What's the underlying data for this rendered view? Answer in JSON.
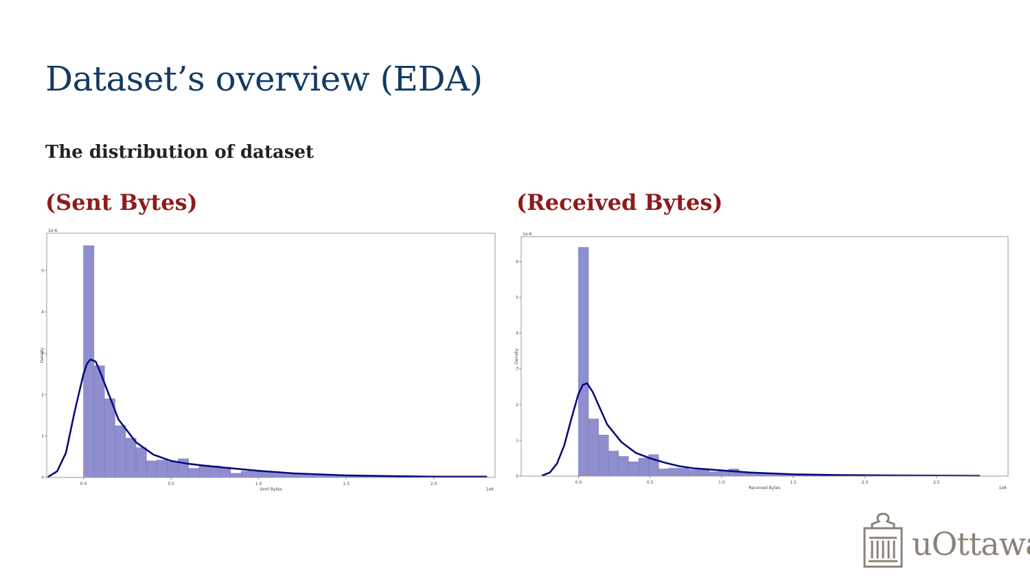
{
  "slide": {
    "title": "Dataset’s overview (EDA)",
    "subtitle": "The distribution of dataset"
  },
  "panels": [
    {
      "title": "(Sent Bytes)"
    },
    {
      "title": "(Received Bytes)"
    }
  ],
  "logo": {
    "text": "uOttawa"
  },
  "colors": {
    "title": "#133b63",
    "panel_title": "#8e1b1b",
    "bars": "#8f8fcf",
    "kde": "#0a0a7a",
    "logo": "#8a8278"
  },
  "chart_data": [
    {
      "type": "bar",
      "subtype": "histogram-with-kde",
      "xlabel": "Sent Bytes",
      "ylabel": "Density",
      "x_offset_label": "1e6",
      "y_offset_label": "1e-6",
      "xlim": [
        -0.21,
        2.35
      ],
      "ylim": [
        0,
        5.9
      ],
      "xticks": [
        0.0,
        0.5,
        1.0,
        1.5,
        2.0
      ],
      "xtick_labels": [
        "0.0",
        "0.5",
        "1.0",
        "1.5",
        "2.0"
      ],
      "yticks": [
        0,
        1,
        2,
        3,
        4,
        5
      ],
      "ytick_labels": [
        "0",
        "1",
        "2",
        "3",
        "4",
        "5"
      ],
      "bins": {
        "start": 0.0,
        "width": 0.06,
        "values": [
          5.6,
          2.7,
          1.9,
          1.25,
          0.95,
          0.72,
          0.4,
          0.42,
          0.38,
          0.45,
          0.22,
          0.3,
          0.28,
          0.25,
          0.1,
          0.15,
          0.14,
          0.13,
          0.13,
          0.11,
          0.09,
          0.07,
          0.06,
          0.05,
          0.05,
          0.04,
          0.04,
          0.03,
          0.03,
          0.03
        ]
      },
      "kde": {
        "x": [
          -0.2,
          -0.15,
          -0.1,
          -0.05,
          0.0,
          0.02,
          0.04,
          0.07,
          0.1,
          0.15,
          0.2,
          0.3,
          0.4,
          0.5,
          0.6,
          0.7,
          0.8,
          0.9,
          1.0,
          1.2,
          1.5,
          1.8,
          2.0,
          2.3
        ],
        "y": [
          0.02,
          0.15,
          0.6,
          1.6,
          2.5,
          2.75,
          2.85,
          2.8,
          2.5,
          1.95,
          1.4,
          0.85,
          0.55,
          0.4,
          0.33,
          0.28,
          0.24,
          0.2,
          0.16,
          0.1,
          0.05,
          0.03,
          0.02,
          0.02
        ]
      }
    },
    {
      "type": "bar",
      "subtype": "histogram-with-kde",
      "xlabel": "Received Bytes",
      "ylabel": "Density",
      "x_offset_label": "1e6",
      "y_offset_label": "1e-6",
      "xlim": [
        -0.4,
        3.0
      ],
      "ylim": [
        0,
        6.7
      ],
      "xticks": [
        0.0,
        0.5,
        1.0,
        1.5,
        2.0,
        2.5
      ],
      "xtick_labels": [
        "0.0",
        "0.5",
        "1.0",
        "1.5",
        "2.0",
        "2.5"
      ],
      "yticks": [
        0,
        1,
        2,
        3,
        4,
        5,
        6
      ],
      "ytick_labels": [
        "0",
        "1",
        "2",
        "3",
        "4",
        "5",
        "6"
      ],
      "bins": {
        "start": 0.0,
        "width": 0.07,
        "values": [
          6.4,
          1.6,
          1.15,
          0.7,
          0.55,
          0.4,
          0.5,
          0.6,
          0.2,
          0.22,
          0.22,
          0.18,
          0.17,
          0.12,
          0.15,
          0.2,
          0.1,
          0.08,
          0.09,
          0.07,
          0.05,
          0.05,
          0.05,
          0.04,
          0.04,
          0.03,
          0.03,
          0.03,
          0.02,
          0.02,
          0.02,
          0.02,
          0.02,
          0.02,
          0.02,
          0.01,
          0.01,
          0.01,
          0.01,
          0.01
        ]
      },
      "kde": {
        "x": [
          -0.25,
          -0.2,
          -0.15,
          -0.1,
          -0.05,
          0.0,
          0.03,
          0.06,
          0.1,
          0.15,
          0.2,
          0.3,
          0.4,
          0.5,
          0.6,
          0.7,
          0.8,
          1.0,
          1.2,
          1.5,
          1.8,
          2.2,
          2.8
        ],
        "y": [
          0.02,
          0.1,
          0.35,
          0.85,
          1.6,
          2.3,
          2.55,
          2.6,
          2.35,
          1.9,
          1.45,
          0.95,
          0.65,
          0.5,
          0.38,
          0.28,
          0.22,
          0.16,
          0.1,
          0.05,
          0.03,
          0.02,
          0.01
        ]
      }
    }
  ]
}
